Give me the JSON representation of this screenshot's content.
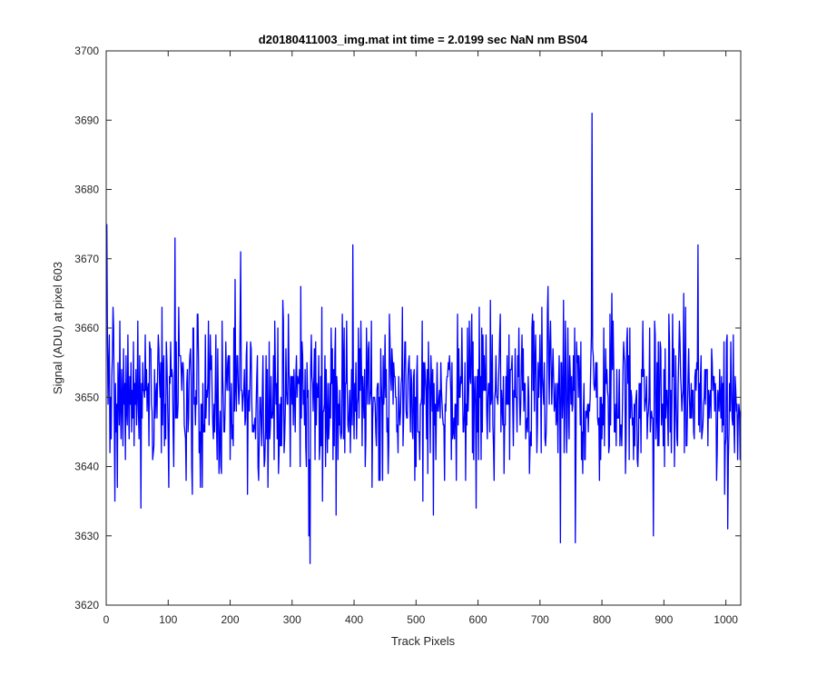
{
  "chart_data": {
    "type": "line",
    "title": "d20180411003_img.mat int time = 2.0199 sec  NaN nm BS04",
    "xlabel": "Track Pixels",
    "ylabel": "Signal (ADU) at pixel 603",
    "xlim": [
      0,
      1024
    ],
    "ylim": [
      3620,
      3700
    ],
    "x_ticks": [
      0,
      100,
      200,
      300,
      400,
      500,
      600,
      700,
      800,
      900,
      1000
    ],
    "y_ticks": [
      3620,
      3630,
      3640,
      3650,
      3660,
      3670,
      3680,
      3690,
      3700
    ],
    "grid": false,
    "legend": "none",
    "line_color": "#0000ff",
    "series": [
      {
        "x_start": 1,
        "x_step": 1,
        "mean": 3650,
        "noise_range": [
          3626,
          3691
        ],
        "values": [
          3675,
          3658,
          3649,
          3655,
          3659,
          3642,
          3650,
          3644,
          3653,
          3656,
          3663,
          3660,
          3647,
          3635,
          3652,
          3645,
          3649,
          3637,
          3655,
          3651,
          3646,
          3661,
          3648,
          3644,
          3654,
          3650,
          3643,
          3657,
          3649,
          3652,
          3641,
          3656,
          3648,
          3646,
          3659,
          3650,
          3644,
          3653,
          3649,
          3655,
          3645,
          3651,
          3647,
          3658,
          3643,
          3652,
          3649,
          3654,
          3646,
          3650,
          3661,
          3648,
          3644,
          3656,
          3650,
          3634,
          3652,
          3647,
          3655,
          3651
        ],
        "spikes": [
          {
            "x": 111,
            "y": 3673
          },
          {
            "x": 217,
            "y": 3671
          },
          {
            "x": 327,
            "y": 3630
          },
          {
            "x": 329,
            "y": 3626
          },
          {
            "x": 398,
            "y": 3672
          },
          {
            "x": 602,
            "y": 3663
          },
          {
            "x": 733,
            "y": 3629
          },
          {
            "x": 757,
            "y": 3629
          },
          {
            "x": 784,
            "y": 3691
          },
          {
            "x": 883,
            "y": 3630
          },
          {
            "x": 955,
            "y": 3672
          },
          {
            "x": 1003,
            "y": 3631
          }
        ]
      }
    ]
  }
}
